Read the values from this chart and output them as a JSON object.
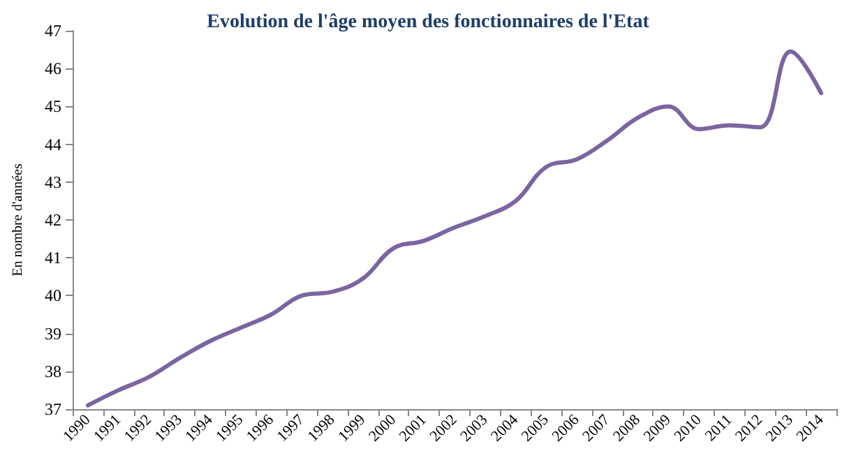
{
  "chart_data": {
    "type": "line",
    "title": "Evolution de l'âge moyen des fonctionnaires de l'Etat",
    "ylabel": "En nombre d'années",
    "categories": [
      "1990",
      "1991",
      "1992",
      "1993",
      "1994",
      "1995",
      "1996",
      "1997",
      "1998",
      "1999",
      "2000",
      "2001",
      "2002",
      "2003",
      "2004",
      "2005",
      "2006",
      "2007",
      "2008",
      "2009",
      "2010",
      "2011",
      "2012",
      "2013",
      "2014"
    ],
    "series": [
      {
        "color": "#7b65a0",
        "values": [
          37.1,
          37.5,
          37.85,
          38.35,
          38.8,
          39.15,
          39.5,
          40.0,
          40.1,
          40.45,
          41.25,
          41.45,
          41.8,
          42.1,
          42.5,
          43.4,
          43.6,
          44.1,
          44.7,
          45.0,
          44.4,
          44.5,
          44.45,
          46.45,
          45.35
        ]
      }
    ],
    "ylim": [
      37,
      47
    ],
    "yticks": [
      37,
      38,
      39,
      40,
      41,
      42,
      43,
      44,
      45,
      46,
      47
    ],
    "grid": false,
    "marker": "none",
    "line_style": "solid"
  }
}
